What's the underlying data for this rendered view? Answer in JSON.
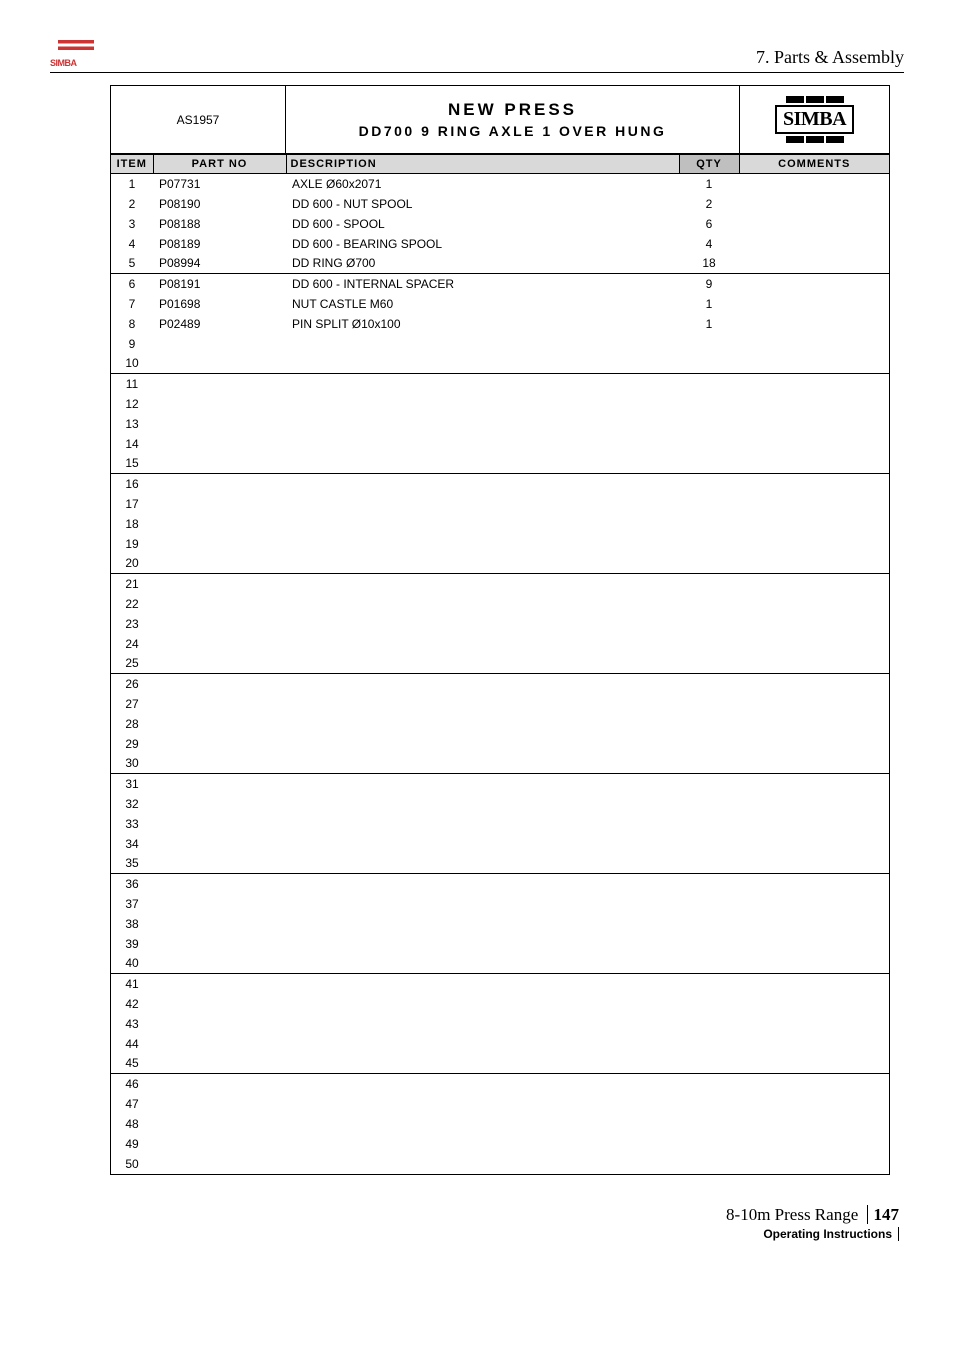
{
  "header": {
    "section_title": "7. Parts & Assembly",
    "small_logo_text": "SIMBA"
  },
  "table_header": {
    "assembly_code": "AS1957",
    "main_title": "NEW PRESS",
    "sub_title": "DD700 9 RING AXLE 1 OVER HUNG",
    "logo_text": "SIMBA",
    "columns": {
      "item": "ITEM",
      "partno": "PART NO",
      "desc": "DESCRIPTION",
      "qty": "QTY",
      "comments": "COMMENTS"
    }
  },
  "rows": [
    {
      "item": "1",
      "partno": "P07731",
      "desc": "AXLE Ø60x2071",
      "qty": "1",
      "comments": ""
    },
    {
      "item": "2",
      "partno": "P08190",
      "desc": "DD 600 - NUT SPOOL",
      "qty": "2",
      "comments": ""
    },
    {
      "item": "3",
      "partno": "P08188",
      "desc": "DD 600 - SPOOL",
      "qty": "6",
      "comments": ""
    },
    {
      "item": "4",
      "partno": "P08189",
      "desc": "DD 600 - BEARING SPOOL",
      "qty": "4",
      "comments": ""
    },
    {
      "item": "5",
      "partno": "P08994",
      "desc": "DD RING Ø700",
      "qty": "18",
      "comments": ""
    },
    {
      "item": "6",
      "partno": "P08191",
      "desc": "DD 600 - INTERNAL SPACER",
      "qty": "9",
      "comments": ""
    },
    {
      "item": "7",
      "partno": "P01698",
      "desc": "NUT CASTLE M60",
      "qty": "1",
      "comments": ""
    },
    {
      "item": "8",
      "partno": "P02489",
      "desc": "PIN SPLIT Ø10x100",
      "qty": "1",
      "comments": ""
    },
    {
      "item": "9",
      "partno": "",
      "desc": "",
      "qty": "",
      "comments": ""
    },
    {
      "item": "10",
      "partno": "",
      "desc": "",
      "qty": "",
      "comments": ""
    },
    {
      "item": "11",
      "partno": "",
      "desc": "",
      "qty": "",
      "comments": ""
    },
    {
      "item": "12",
      "partno": "",
      "desc": "",
      "qty": "",
      "comments": ""
    },
    {
      "item": "13",
      "partno": "",
      "desc": "",
      "qty": "",
      "comments": ""
    },
    {
      "item": "14",
      "partno": "",
      "desc": "",
      "qty": "",
      "comments": ""
    },
    {
      "item": "15",
      "partno": "",
      "desc": "",
      "qty": "",
      "comments": ""
    },
    {
      "item": "16",
      "partno": "",
      "desc": "",
      "qty": "",
      "comments": ""
    },
    {
      "item": "17",
      "partno": "",
      "desc": "",
      "qty": "",
      "comments": ""
    },
    {
      "item": "18",
      "partno": "",
      "desc": "",
      "qty": "",
      "comments": ""
    },
    {
      "item": "19",
      "partno": "",
      "desc": "",
      "qty": "",
      "comments": ""
    },
    {
      "item": "20",
      "partno": "",
      "desc": "",
      "qty": "",
      "comments": ""
    },
    {
      "item": "21",
      "partno": "",
      "desc": "",
      "qty": "",
      "comments": ""
    },
    {
      "item": "22",
      "partno": "",
      "desc": "",
      "qty": "",
      "comments": ""
    },
    {
      "item": "23",
      "partno": "",
      "desc": "",
      "qty": "",
      "comments": ""
    },
    {
      "item": "24",
      "partno": "",
      "desc": "",
      "qty": "",
      "comments": ""
    },
    {
      "item": "25",
      "partno": "",
      "desc": "",
      "qty": "",
      "comments": ""
    },
    {
      "item": "26",
      "partno": "",
      "desc": "",
      "qty": "",
      "comments": ""
    },
    {
      "item": "27",
      "partno": "",
      "desc": "",
      "qty": "",
      "comments": ""
    },
    {
      "item": "28",
      "partno": "",
      "desc": "",
      "qty": "",
      "comments": ""
    },
    {
      "item": "29",
      "partno": "",
      "desc": "",
      "qty": "",
      "comments": ""
    },
    {
      "item": "30",
      "partno": "",
      "desc": "",
      "qty": "",
      "comments": ""
    },
    {
      "item": "31",
      "partno": "",
      "desc": "",
      "qty": "",
      "comments": ""
    },
    {
      "item": "32",
      "partno": "",
      "desc": "",
      "qty": "",
      "comments": ""
    },
    {
      "item": "33",
      "partno": "",
      "desc": "",
      "qty": "",
      "comments": ""
    },
    {
      "item": "34",
      "partno": "",
      "desc": "",
      "qty": "",
      "comments": ""
    },
    {
      "item": "35",
      "partno": "",
      "desc": "",
      "qty": "",
      "comments": ""
    },
    {
      "item": "36",
      "partno": "",
      "desc": "",
      "qty": "",
      "comments": ""
    },
    {
      "item": "37",
      "partno": "",
      "desc": "",
      "qty": "",
      "comments": ""
    },
    {
      "item": "38",
      "partno": "",
      "desc": "",
      "qty": "",
      "comments": ""
    },
    {
      "item": "39",
      "partno": "",
      "desc": "",
      "qty": "",
      "comments": ""
    },
    {
      "item": "40",
      "partno": "",
      "desc": "",
      "qty": "",
      "comments": ""
    },
    {
      "item": "41",
      "partno": "",
      "desc": "",
      "qty": "",
      "comments": ""
    },
    {
      "item": "42",
      "partno": "",
      "desc": "",
      "qty": "",
      "comments": ""
    },
    {
      "item": "43",
      "partno": "",
      "desc": "",
      "qty": "",
      "comments": ""
    },
    {
      "item": "44",
      "partno": "",
      "desc": "",
      "qty": "",
      "comments": ""
    },
    {
      "item": "45",
      "partno": "",
      "desc": "",
      "qty": "",
      "comments": ""
    },
    {
      "item": "46",
      "partno": "",
      "desc": "",
      "qty": "",
      "comments": ""
    },
    {
      "item": "47",
      "partno": "",
      "desc": "",
      "qty": "",
      "comments": ""
    },
    {
      "item": "48",
      "partno": "",
      "desc": "",
      "qty": "",
      "comments": ""
    },
    {
      "item": "49",
      "partno": "",
      "desc": "",
      "qty": "",
      "comments": ""
    },
    {
      "item": "50",
      "partno": "",
      "desc": "",
      "qty": "",
      "comments": ""
    }
  ],
  "divider_after_items": [
    5,
    10,
    15,
    20,
    25,
    30,
    35,
    40,
    45
  ],
  "footer": {
    "doc_title": "8-10m Press Range",
    "page_number": "147",
    "subtitle": "Operating Instructions"
  },
  "style": {
    "header_bg": "#d9d9d9",
    "qty_header_bg": "#bfbfbf",
    "border_color": "#000000",
    "font_size_body": 12,
    "font_size_title": 17
  }
}
